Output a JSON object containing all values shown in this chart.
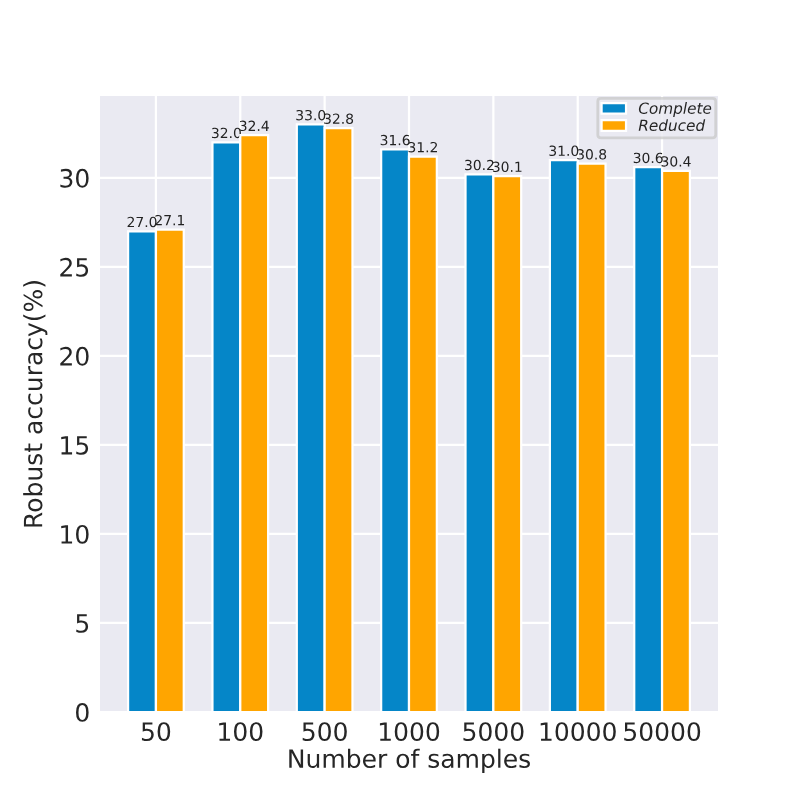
{
  "chart_data": {
    "type": "bar",
    "xlabel": "Number of samples",
    "ylabel": "Robust accuracy(%)",
    "categories": [
      "50",
      "100",
      "500",
      "1000",
      "5000",
      "10000",
      "50000"
    ],
    "series": [
      {
        "name": "Complete",
        "color": "#0586c8",
        "values": [
          27.0,
          32.0,
          33.0,
          31.6,
          30.2,
          31.0,
          30.6
        ],
        "value_labels": [
          "27.0",
          "32.0",
          "33.0",
          "31.6",
          "30.2",
          "31.0",
          "30.6"
        ]
      },
      {
        "name": "Reduced",
        "color": "#ffa500",
        "values": [
          27.1,
          32.4,
          32.8,
          31.2,
          30.1,
          30.8,
          30.4
        ],
        "value_labels": [
          "27.1",
          "32.4",
          "32.8",
          "31.2",
          "30.1",
          "30.8",
          "30.4"
        ]
      }
    ],
    "ylim": [
      0,
      34.6
    ],
    "yticks": [
      0,
      5,
      10,
      15,
      20,
      25,
      30
    ],
    "grid": true,
    "legend": "top right"
  }
}
